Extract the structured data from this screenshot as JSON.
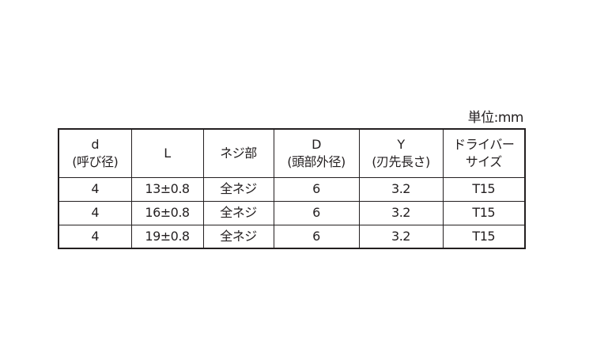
{
  "unit_label": "単位:mm",
  "headers": [
    {
      "line1": "d",
      "line2": "(呼び径)"
    },
    {
      "line1": "L",
      "line2": ""
    },
    {
      "line1": "ネジ部",
      "line2": ""
    },
    {
      "line1": "D",
      "line2": "(頭部外径)"
    },
    {
      "line1": "Y",
      "line2": "(刃先長さ)"
    },
    {
      "line1": "ドライバー",
      "line2": "サイズ"
    }
  ],
  "rows": [
    [
      "4",
      "13±0.8",
      "全ネジ",
      "6",
      "3.2",
      "T15"
    ],
    [
      "4",
      "16±0.8",
      "全ネジ",
      "6",
      "3.2",
      "T15"
    ],
    [
      "4",
      "19±0.8",
      "全ネジ",
      "6",
      "3.2",
      "T15"
    ]
  ]
}
